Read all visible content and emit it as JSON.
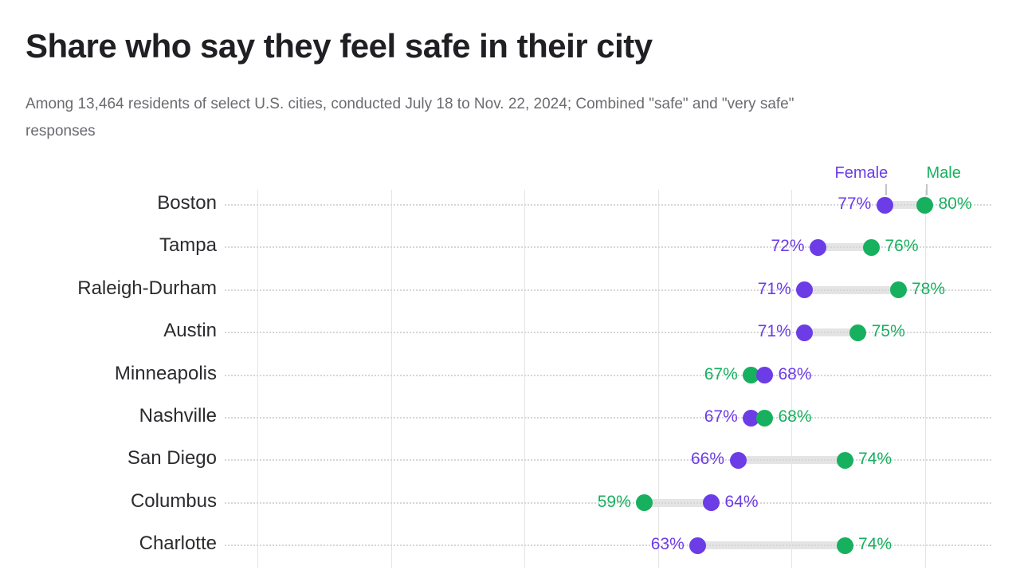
{
  "header": {
    "title": "Share who say they feel safe in their city",
    "subtitle_lines": [
      "Among 13,464 residents of select U.S. cities, conducted July 18 to Nov. 22, 2024; Combined \"safe\" and \"very safe\"",
      "responses"
    ]
  },
  "legend": {
    "female_label": "Female",
    "male_label": "Male"
  },
  "colors": {
    "female": "#6c3ce6",
    "male": "#17b05f",
    "bar": "#e4e4e4",
    "row_dotted_line": "#d6d6d6",
    "gridline": "#e5e5e5",
    "title_text": "#202024",
    "subtitle_text": "#6b6b70",
    "city_label_text": "#2b2b2f"
  },
  "chart_data": {
    "type": "dumbbell",
    "title": "Share who say they feel safe in their city",
    "subtitle": "Among 13,464 residents of select U.S. cities, conducted July 18 to Nov. 22, 2024; Combined \"safe\" and \"very safe\" responses",
    "categories": [
      "Boston",
      "Tampa",
      "Raleigh-Durham",
      "Austin",
      "Minneapolis",
      "Nashville",
      "San Diego",
      "Columbus",
      "Charlotte"
    ],
    "series": [
      {
        "name": "Female",
        "values": [
          77,
          72,
          71,
          71,
          68,
          67,
          66,
          64,
          63
        ]
      },
      {
        "name": "Male",
        "values": [
          80,
          76,
          78,
          75,
          67,
          68,
          74,
          59,
          74
        ]
      }
    ],
    "value_suffix": "%",
    "value_labels": {
      "female": [
        "77%",
        "72%",
        "71%",
        "71%",
        "68%",
        "67%",
        "66%",
        "64%",
        "63%"
      ],
      "male": [
        "80%",
        "76%",
        "78%",
        "75%",
        "67%",
        "68%",
        "74%",
        "59%",
        "74%"
      ]
    },
    "axis": {
      "min": 30,
      "max": 85,
      "gridlines": [
        30,
        40,
        50,
        60,
        70,
        80
      ],
      "tick_labels_visible": false,
      "grid": "vertical solid + per-row dotted guides"
    },
    "legend_position": "top-right, above first row with tick connectors"
  }
}
